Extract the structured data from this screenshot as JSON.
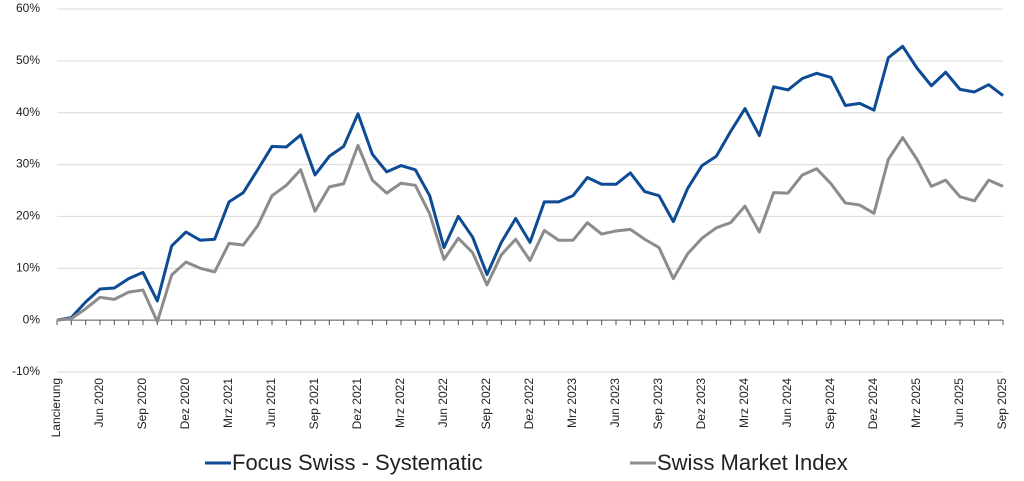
{
  "chart_data": {
    "type": "line",
    "categories": [
      "Lancierung",
      null,
      null,
      "Jun 2020",
      null,
      null,
      "Sep 2020",
      null,
      null,
      "Dez 2020",
      null,
      null,
      "Mrz 2021",
      null,
      null,
      "Jun 2021",
      null,
      null,
      "Sep 2021",
      null,
      null,
      "Dez 2021",
      null,
      null,
      "Mrz 2022",
      null,
      null,
      "Jun 2022",
      null,
      null,
      "Sep 2022",
      null,
      null,
      "Dez 2022",
      null,
      null,
      "Mrz 2023",
      null,
      null,
      "Jun 2023",
      null,
      null,
      "Sep 2023",
      null,
      null,
      "Dez 2023",
      null,
      null,
      "Mrz 2024",
      null,
      null,
      "Jun 2024",
      null,
      null,
      "Sep 2024",
      null,
      null,
      "Dez 2024",
      null,
      null,
      "Mrz 2025",
      null,
      null,
      "Jun 2025",
      null,
      null,
      "Sep 2025"
    ],
    "series": [
      {
        "name": "Focus Swiss - Systematic",
        "color": "#0d4b94",
        "values": [
          0,
          0.5,
          3.5,
          6,
          6.2,
          8,
          9.2,
          3.7,
          14.3,
          17,
          15.4,
          15.6,
          22.8,
          24.6,
          29,
          33.5,
          33.4,
          35.7,
          28,
          31.6,
          33.5,
          39.8,
          32,
          28.6,
          29.8,
          29,
          24,
          14,
          20,
          16,
          8.8,
          15,
          19.6,
          15,
          22.8,
          22.8,
          24,
          27.5,
          26.2,
          26.2,
          28.4,
          24.8,
          24,
          19,
          25.4,
          29.8,
          31.6,
          36.4,
          40.8,
          35.6,
          45,
          44.4,
          46.6,
          47.6,
          46.8,
          41.4,
          41.8,
          40.5,
          50.6,
          52.8,
          48.6,
          45.2,
          47.8,
          44.5,
          44,
          45.4,
          43.3
        ]
      },
      {
        "name": "Swiss Market Index",
        "color": "#8c8c8c",
        "values": [
          0,
          0.3,
          2.2,
          4.4,
          4,
          5.4,
          5.8,
          -0.3,
          8.7,
          11.2,
          10,
          9.3,
          14.8,
          14.5,
          18.2,
          24,
          26,
          29,
          21,
          25.7,
          26.3,
          33.7,
          27,
          24.5,
          26.4,
          26,
          20.5,
          11.7,
          15.8,
          13,
          6.8,
          12.6,
          15.6,
          11.5,
          17.3,
          15.4,
          15.4,
          18.8,
          16.6,
          17.2,
          17.5,
          15.6,
          14,
          8,
          12.8,
          15.8,
          17.8,
          18.8,
          22,
          17,
          24.6,
          24.5,
          28,
          29.2,
          26.3,
          22.6,
          22.2,
          20.6,
          31,
          35.2,
          31,
          25.8,
          27,
          23.8,
          23,
          27,
          25.8
        ]
      }
    ],
    "ylim": [
      -10,
      60
    ],
    "yticks": [
      {
        "value": -10,
        "label": "-10%"
      },
      {
        "value": 0,
        "label": "0%"
      },
      {
        "value": 10,
        "label": "10%"
      },
      {
        "value": 20,
        "label": "20%"
      },
      {
        "value": 30,
        "label": "30%"
      },
      {
        "value": 40,
        "label": "40%"
      },
      {
        "value": 50,
        "label": "50%"
      },
      {
        "value": 60,
        "label": "60%"
      }
    ],
    "grid": true
  }
}
